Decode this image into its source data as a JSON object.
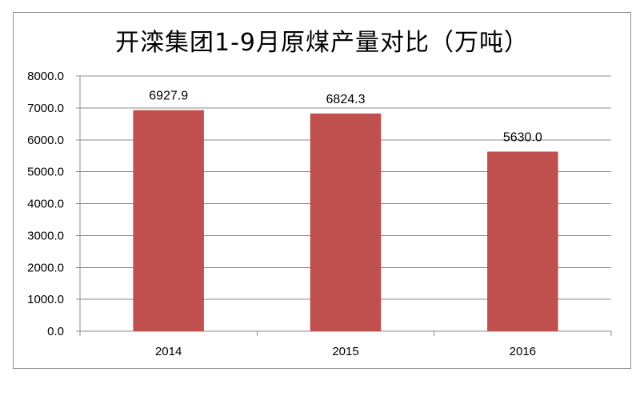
{
  "chart_data": {
    "type": "bar",
    "title": "开滦集团1-9月原煤产量对比（万吨）",
    "categories": [
      "2014",
      "2015",
      "2016"
    ],
    "values": [
      6927.9,
      6824.3,
      5630.0
    ],
    "data_labels": [
      "6927.9",
      "6824.3",
      "5630.0"
    ],
    "ylim": [
      0,
      8000
    ],
    "yticks": [
      "0.0",
      "1000.0",
      "2000.0",
      "3000.0",
      "4000.0",
      "5000.0",
      "6000.0",
      "7000.0",
      "8000.0"
    ],
    "ytick_values": [
      0,
      1000,
      2000,
      3000,
      4000,
      5000,
      6000,
      7000,
      8000
    ],
    "xlabel": "",
    "ylabel": "",
    "grid": true,
    "legend": "none",
    "colors": {
      "bar": "#c0504d",
      "grid": "#8c8c8c",
      "axis": "#8c8c8c"
    }
  }
}
